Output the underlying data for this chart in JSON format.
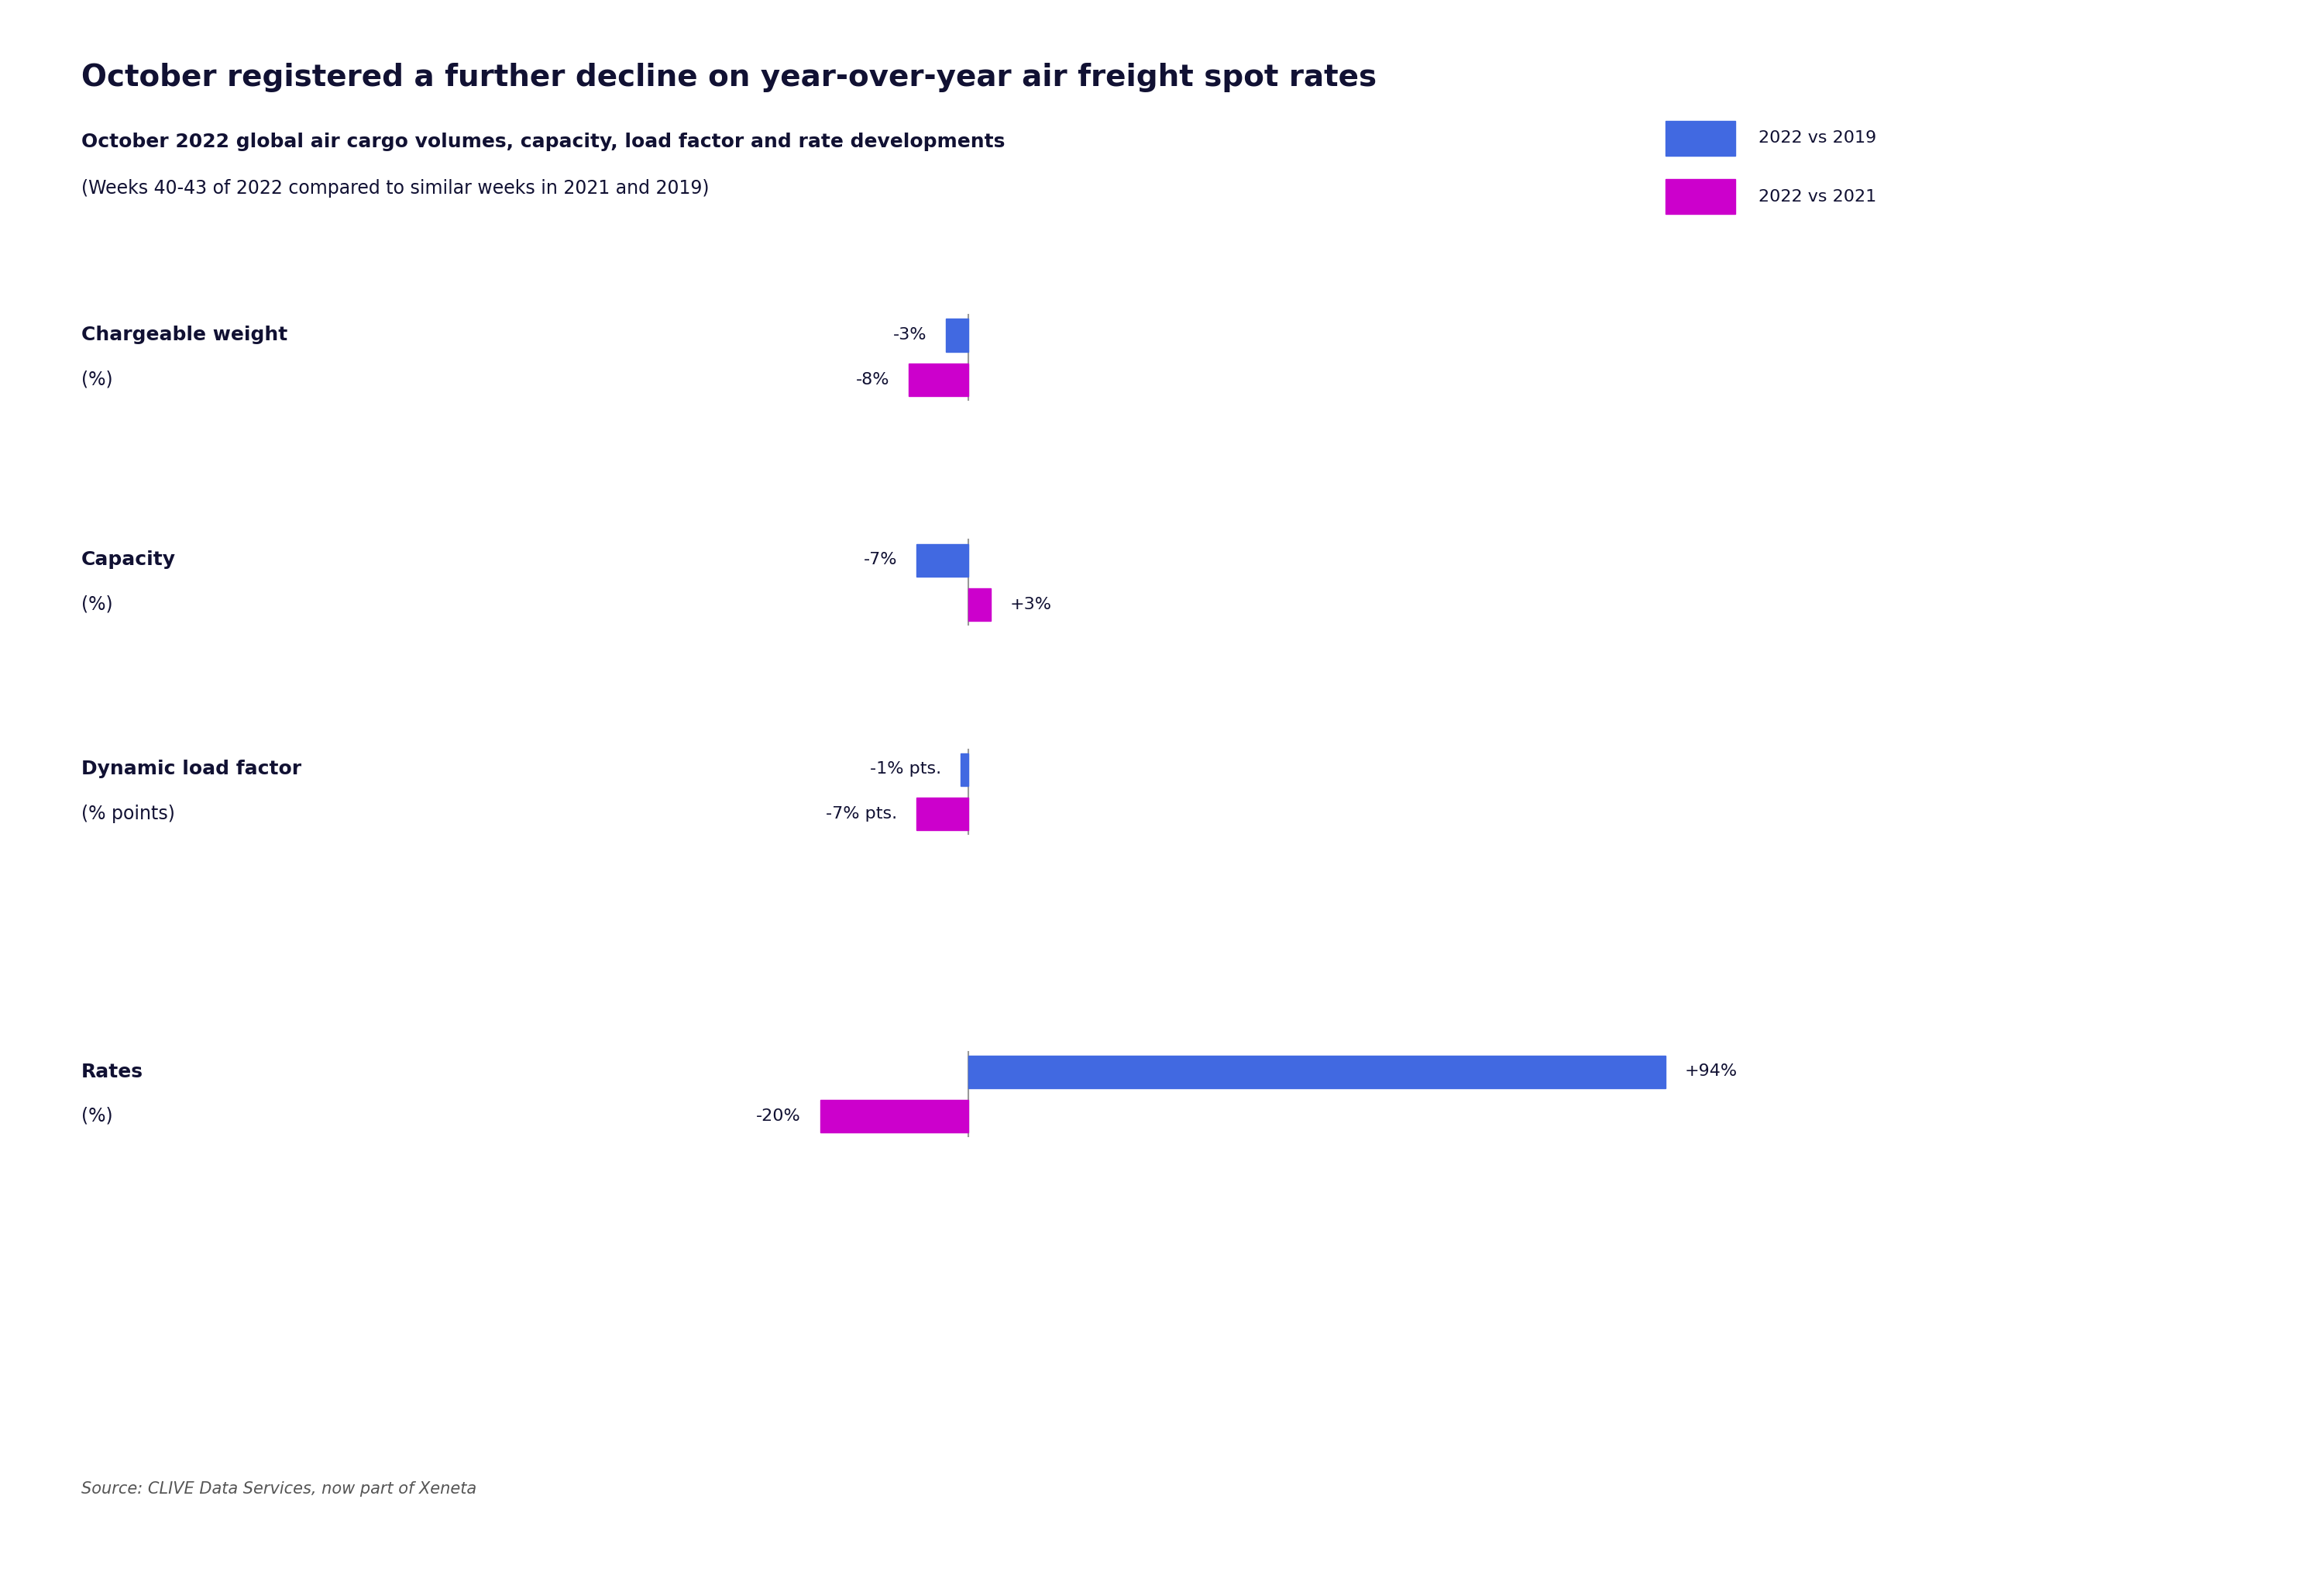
{
  "title": "October registered a further decline on year-over-year air freight spot rates",
  "subtitle_bold": "October 2022 global air cargo volumes, capacity, load factor and rate developments",
  "subtitle_normal": "(Weeks 40-43 of 2022 compared to similar weeks in 2021 and 2019)",
  "source": "Source: CLIVE Data Services, now part of Xeneta",
  "categories": [
    {
      "label_bold": "Chargeable weight",
      "label_normal": "(%)",
      "blue_val": -3,
      "purple_val": -8,
      "blue_label": "-3%",
      "purple_label": "-8%"
    },
    {
      "label_bold": "Capacity",
      "label_normal": "(%)",
      "blue_val": -7,
      "purple_val": 3,
      "blue_label": "-7%",
      "purple_label": "+3%"
    },
    {
      "label_bold": "Dynamic load factor",
      "label_normal": "(% points)",
      "blue_val": -1,
      "purple_val": -7,
      "blue_label": "-1% pts.",
      "purple_label": "-7% pts."
    },
    {
      "label_bold": "Rates",
      "label_normal": "(%)",
      "blue_val": 94,
      "purple_val": -20,
      "blue_label": "+94%",
      "purple_label": "-20%"
    }
  ],
  "blue_color": "#4169E1",
  "purple_color": "#CC00CC",
  "legend_blue": "2022 vs 2019",
  "legend_purple": "2022 vs 2021",
  "title_color": "#111133",
  "text_color": "#111133",
  "label_color": "#111133",
  "background_color": "#ffffff"
}
